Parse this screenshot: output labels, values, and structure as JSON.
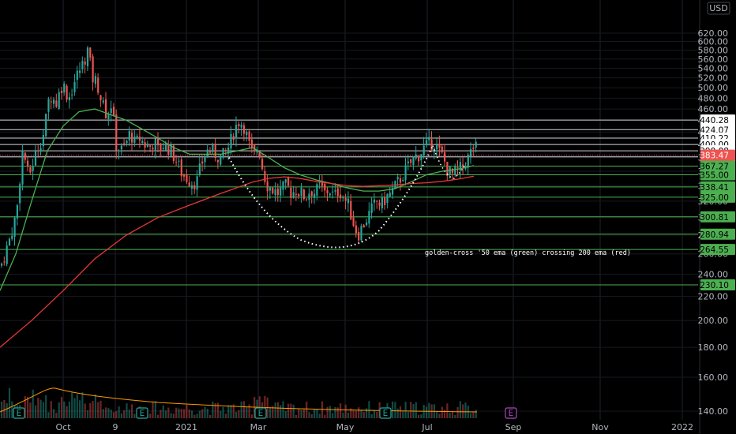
{
  "chart_data": {
    "type": "candlestick",
    "currency": "USD",
    "y_scale": "log",
    "ylim": [
      130,
      640
    ],
    "y_ticks": [
      140,
      160,
      180,
      200,
      220,
      240,
      260,
      280,
      300,
      320,
      340,
      360,
      380,
      400,
      420,
      440,
      460,
      480,
      500,
      520,
      540,
      560,
      580,
      600,
      620
    ],
    "x_ticks": [
      "Oct",
      "9",
      "2021",
      "Mar",
      "May",
      "Jul",
      "Sep",
      "Nov",
      "2022"
    ],
    "last_price": 383.47,
    "horizontal_levels": [
      440.28,
      424.07,
      410.22,
      400.0,
      390.08,
      381.0,
      367.27,
      355.0,
      338.41,
      325.0,
      300.81,
      280.94,
      264.55,
      230.1
    ],
    "level_labels": {
      "440.28": "440.28",
      "424.07": "424.07",
      "410.22": "410.22",
      "400.0": "400.00",
      "390.08": "390.08",
      "381.0": "381.00",
      "367.27": "367.27",
      "355.0": "355.00",
      "338.41": "338.41",
      "325.0": "325.00",
      "300.81": "300.81",
      "280.94": "280.94",
      "264.55": "264.55",
      "230.1": "230.10",
      "383.47": "383.47"
    },
    "price_path": [
      [
        0,
        248
      ],
      [
        10,
        272
      ],
      [
        20,
        305
      ],
      [
        28,
        395
      ],
      [
        35,
        350
      ],
      [
        45,
        390
      ],
      [
        55,
        420
      ],
      [
        62,
        490
      ],
      [
        70,
        470
      ],
      [
        78,
        510
      ],
      [
        86,
        480
      ],
      [
        95,
        520
      ],
      [
        104,
        550
      ],
      [
        110,
        580
      ],
      [
        116,
        520
      ],
      [
        122,
        510
      ],
      [
        128,
        470
      ],
      [
        134,
        450
      ],
      [
        140,
        470
      ],
      [
        146,
        400
      ],
      [
        152,
        390
      ],
      [
        158,
        400
      ],
      [
        164,
        420
      ],
      [
        170,
        400
      ],
      [
        176,
        410
      ],
      [
        182,
        400
      ],
      [
        188,
        395
      ],
      [
        194,
        405
      ],
      [
        200,
        390
      ],
      [
        206,
        400
      ],
      [
        212,
        395
      ],
      [
        218,
        385
      ],
      [
        224,
        370
      ],
      [
        230,
        355
      ],
      [
        236,
        350
      ],
      [
        242,
        345
      ],
      [
        248,
        345
      ],
      [
        254,
        370
      ],
      [
        260,
        390
      ],
      [
        266,
        390
      ],
      [
        272,
        385
      ],
      [
        278,
        380
      ],
      [
        284,
        385
      ],
      [
        290,
        400
      ],
      [
        296,
        425
      ],
      [
        302,
        440
      ],
      [
        308,
        430
      ],
      [
        314,
        400
      ],
      [
        320,
        380
      ],
      [
        326,
        400
      ],
      [
        332,
        360
      ],
      [
        338,
        340
      ],
      [
        344,
        335
      ],
      [
        350,
        330
      ],
      [
        356,
        335
      ],
      [
        362,
        340
      ],
      [
        368,
        330
      ],
      [
        374,
        335
      ],
      [
        380,
        330
      ],
      [
        386,
        325
      ],
      [
        392,
        335
      ],
      [
        398,
        330
      ],
      [
        404,
        340
      ],
      [
        410,
        330
      ],
      [
        416,
        335
      ],
      [
        422,
        325
      ],
      [
        428,
        335
      ],
      [
        434,
        325
      ],
      [
        440,
        315
      ],
      [
        446,
        295
      ],
      [
        452,
        280
      ],
      [
        458,
        290
      ],
      [
        464,
        300
      ],
      [
        470,
        310
      ],
      [
        476,
        320
      ],
      [
        482,
        315
      ],
      [
        488,
        325
      ],
      [
        494,
        330
      ],
      [
        500,
        340
      ],
      [
        506,
        350
      ],
      [
        512,
        360
      ],
      [
        518,
        370
      ],
      [
        524,
        380
      ],
      [
        530,
        385
      ],
      [
        536,
        395
      ],
      [
        542,
        400
      ],
      [
        548,
        405
      ],
      [
        554,
        390
      ],
      [
        560,
        380
      ],
      [
        566,
        360
      ],
      [
        572,
        355
      ],
      [
        578,
        360
      ],
      [
        584,
        365
      ],
      [
        590,
        375
      ],
      [
        596,
        390
      ],
      [
        600,
        400
      ],
      [
        604,
        385
      ]
    ],
    "ema50_path": [
      [
        0,
        225
      ],
      [
        20,
        260
      ],
      [
        40,
        320
      ],
      [
        60,
        390
      ],
      [
        80,
        430
      ],
      [
        100,
        455
      ],
      [
        120,
        460
      ],
      [
        140,
        450
      ],
      [
        160,
        440
      ],
      [
        180,
        425
      ],
      [
        200,
        410
      ],
      [
        220,
        395
      ],
      [
        240,
        385
      ],
      [
        260,
        385
      ],
      [
        280,
        385
      ],
      [
        300,
        390
      ],
      [
        320,
        395
      ],
      [
        340,
        380
      ],
      [
        360,
        365
      ],
      [
        380,
        355
      ],
      [
        400,
        348
      ],
      [
        420,
        343
      ],
      [
        440,
        337
      ],
      [
        460,
        333
      ],
      [
        480,
        333
      ],
      [
        500,
        336
      ],
      [
        520,
        345
      ],
      [
        540,
        355
      ],
      [
        560,
        360
      ],
      [
        580,
        363
      ],
      [
        600,
        368
      ]
    ],
    "ema200_path": [
      [
        0,
        180
      ],
      [
        40,
        200
      ],
      [
        80,
        225
      ],
      [
        120,
        255
      ],
      [
        160,
        280
      ],
      [
        200,
        300
      ],
      [
        240,
        315
      ],
      [
        280,
        330
      ],
      [
        320,
        345
      ],
      [
        340,
        350
      ],
      [
        360,
        352
      ],
      [
        380,
        350
      ],
      [
        400,
        346
      ],
      [
        420,
        343
      ],
      [
        440,
        340
      ],
      [
        460,
        339
      ],
      [
        480,
        340
      ],
      [
        500,
        341
      ],
      [
        520,
        343
      ],
      [
        540,
        344
      ],
      [
        560,
        346
      ],
      [
        580,
        349
      ],
      [
        600,
        353
      ]
    ],
    "annotation": "golden-cross '50 ema (green) crossing 200 ema (red)",
    "earnings_markers": [
      "E",
      "E",
      "E",
      "E",
      "E"
    ],
    "colors": {
      "up": "#26a69a",
      "down": "#ef5350",
      "ema50": "#4caf50",
      "ema200": "#e53935",
      "grid": "#1e222d"
    }
  }
}
